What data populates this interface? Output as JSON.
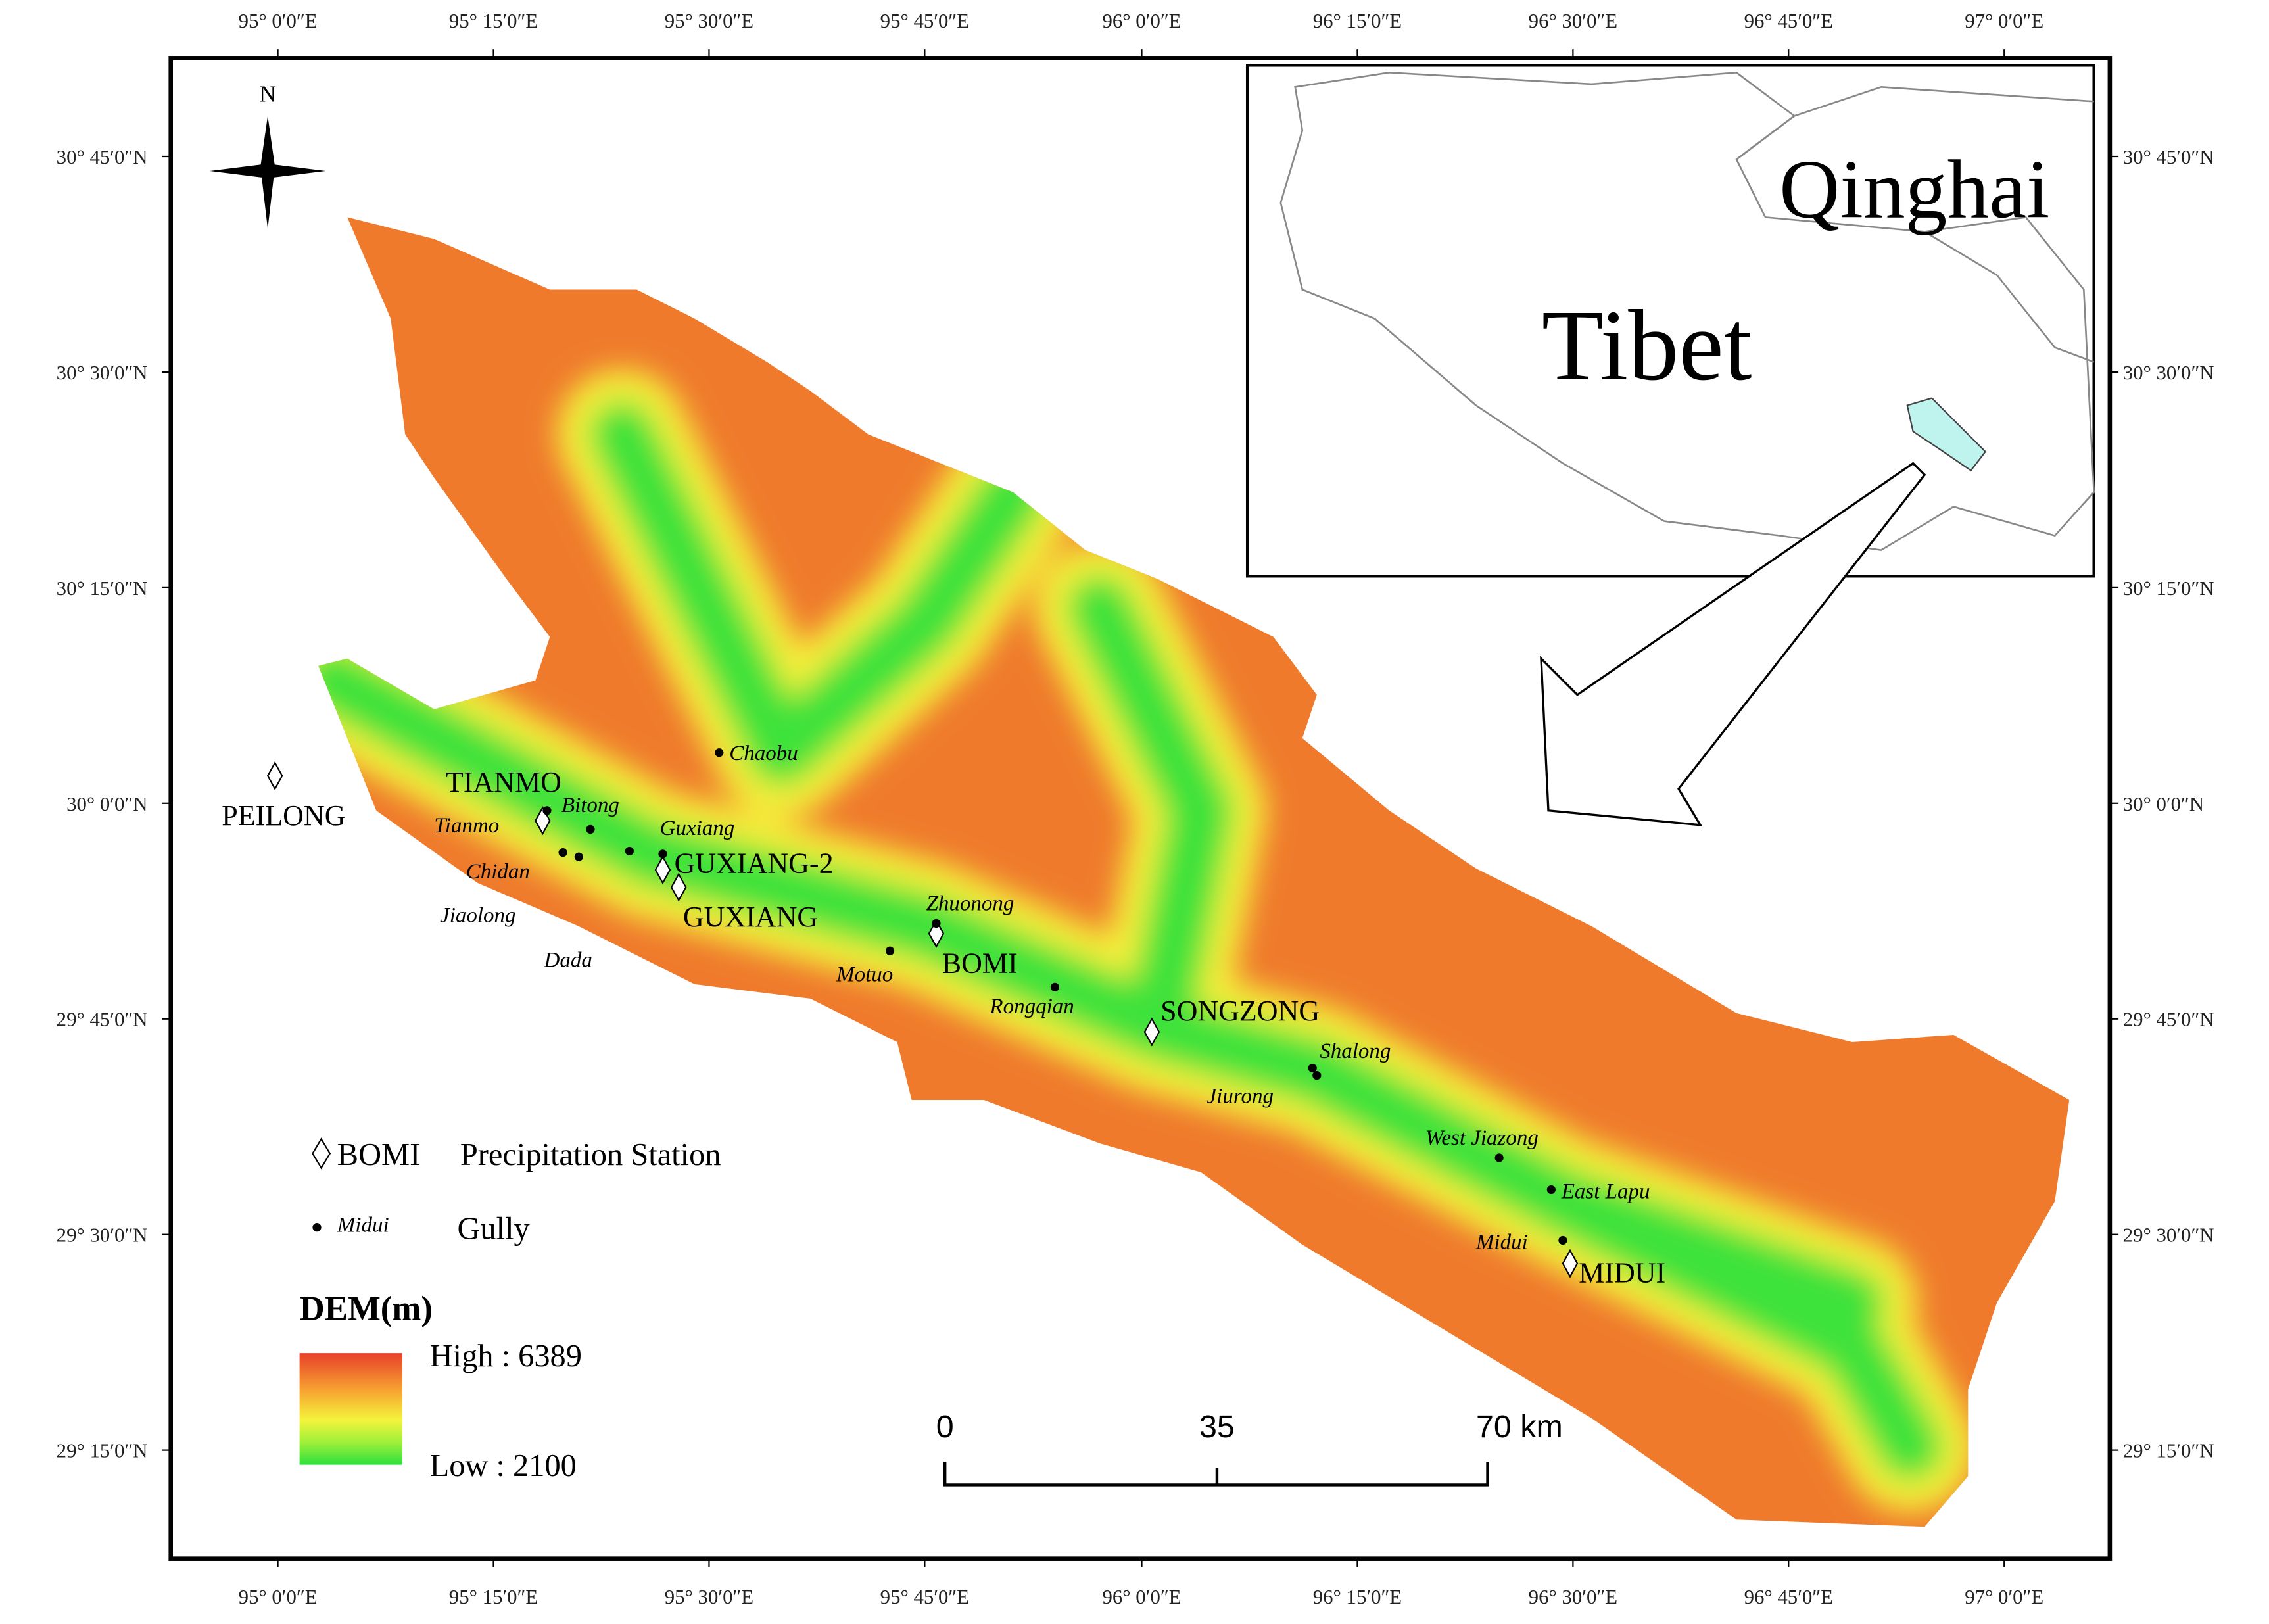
{
  "lon_labels": [
    "95° 0′0″E",
    "95° 15′0″E",
    "95° 30′0″E",
    "95° 45′0″E",
    "96° 0′0″E",
    "96° 15′0″E",
    "96° 30′0″E",
    "96° 45′0″E",
    "97° 0′0″E"
  ],
  "lat_labels": [
    "30° 45′0″N",
    "30° 30′0″N",
    "30° 15′0″N",
    "30° 0′0″N",
    "29° 45′0″N",
    "29° 30′0″N",
    "29° 15′0″N"
  ],
  "north": "N",
  "inset": {
    "labels": [
      "Qinghai",
      "Tibet"
    ]
  },
  "stations": [
    "PEILONG",
    "TIANMO",
    "GUXIANG-2",
    "GUXIANG",
    "BOMI",
    "SONGZONG",
    "MIDUI"
  ],
  "gullies": [
    "Chaobu",
    "Bitong",
    "Tianmo",
    "Guxiang",
    "Chidan",
    "Jiaolong",
    "Dada",
    "Zhuonong",
    "Motuo",
    "Rongqian",
    "Shalong",
    "Jiurong",
    "West Jiazong",
    "East Lapu",
    "Midui"
  ],
  "legend": {
    "station_example": "BOMI",
    "station_label": "Precipitation Station",
    "gully_example": "Midui",
    "gully_label": "Gully"
  },
  "dem": {
    "title": "DEM(m)",
    "high_label": "High : 6389",
    "low_label": "Low : 2100"
  },
  "scale_bar": {
    "labels": [
      "0",
      "35",
      "70 km"
    ]
  }
}
